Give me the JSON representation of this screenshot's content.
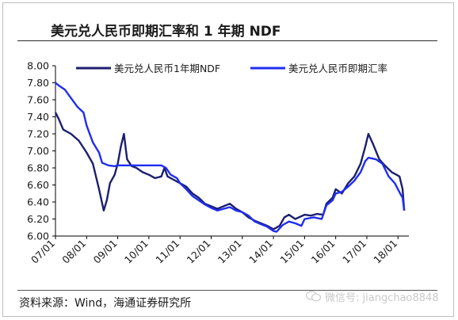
{
  "title": "美元兑人民币即期汇率和 1 年期 NDF",
  "source": "资料来源：Wind，海通证券研究所",
  "watermark": {
    "text": "微信号: jiangchao8848",
    "icon": "wechat-icon"
  },
  "colors": {
    "ndf": "#1b1f6e",
    "spot": "#1f2ef0",
    "axis": "#000000",
    "text": "#1a1a1a"
  },
  "chart_data": {
    "type": "line",
    "ylim": [
      6.0,
      8.0
    ],
    "yticks": [
      "8.00",
      "7.80",
      "7.60",
      "7.40",
      "7.20",
      "7.00",
      "6.80",
      "6.60",
      "6.40",
      "6.20",
      "6.00"
    ],
    "xticks": [
      "07/01",
      "08/01",
      "09/01",
      "10/01",
      "11/01",
      "12/01",
      "13/01",
      "14/01",
      "15/01",
      "16/01",
      "17/01",
      "18/01"
    ],
    "legend_position": "top",
    "series": [
      {
        "name": "美元兑人民币1年期NDF",
        "color": "#1b1f6e",
        "x": [
          2007.0,
          2007.1,
          2007.25,
          2007.5,
          2007.75,
          2008.0,
          2008.2,
          2008.4,
          2008.55,
          2008.65,
          2008.75,
          2008.9,
          2009.0,
          2009.1,
          2009.2,
          2009.3,
          2009.45,
          2009.6,
          2009.8,
          2010.0,
          2010.2,
          2010.4,
          2010.5,
          2010.6,
          2010.8,
          2011.0,
          2011.2,
          2011.4,
          2011.6,
          2011.8,
          2012.0,
          2012.2,
          2012.4,
          2012.6,
          2012.8,
          2013.0,
          2013.2,
          2013.4,
          2013.6,
          2013.8,
          2014.0,
          2014.2,
          2014.35,
          2014.5,
          2014.7,
          2015.0,
          2015.2,
          2015.4,
          2015.6,
          2015.7,
          2015.9,
          2016.0,
          2016.2,
          2016.4,
          2016.6,
          2016.8,
          2016.95,
          2017.05,
          2017.2,
          2017.4,
          2017.6,
          2017.8,
          2017.95,
          2018.05,
          2018.15,
          2018.2
        ],
        "y": [
          7.45,
          7.38,
          7.25,
          7.2,
          7.12,
          6.98,
          6.85,
          6.55,
          6.3,
          6.42,
          6.62,
          6.72,
          6.85,
          7.05,
          7.2,
          6.9,
          6.82,
          6.8,
          6.75,
          6.72,
          6.68,
          6.7,
          6.8,
          6.7,
          6.66,
          6.62,
          6.58,
          6.5,
          6.45,
          6.38,
          6.35,
          6.32,
          6.35,
          6.38,
          6.32,
          6.28,
          6.22,
          6.18,
          6.15,
          6.12,
          6.08,
          6.12,
          6.22,
          6.25,
          6.2,
          6.25,
          6.24,
          6.26,
          6.25,
          6.38,
          6.45,
          6.55,
          6.5,
          6.62,
          6.7,
          6.85,
          7.05,
          7.2,
          7.08,
          6.9,
          6.82,
          6.75,
          6.72,
          6.7,
          6.55,
          6.3
        ]
      },
      {
        "name": "美元兑人民币即期汇率",
        "color": "#1f2ef0",
        "x": [
          2007.0,
          2007.1,
          2007.3,
          2007.5,
          2007.7,
          2007.9,
          2008.0,
          2008.2,
          2008.4,
          2008.5,
          2008.7,
          2008.9,
          2009.0,
          2009.3,
          2009.6,
          2010.0,
          2010.4,
          2010.55,
          2010.7,
          2010.9,
          2011.0,
          2011.2,
          2011.4,
          2011.6,
          2011.8,
          2012.0,
          2012.2,
          2012.4,
          2012.6,
          2012.8,
          2013.0,
          2013.2,
          2013.4,
          2013.6,
          2013.8,
          2014.0,
          2014.1,
          2014.3,
          2014.5,
          2014.7,
          2014.9,
          2015.0,
          2015.3,
          2015.55,
          2015.7,
          2015.9,
          2016.0,
          2016.2,
          2016.4,
          2016.6,
          2016.8,
          2016.95,
          2017.05,
          2017.3,
          2017.5,
          2017.7,
          2017.9,
          2018.0,
          2018.1,
          2018.15,
          2018.2
        ],
        "y": [
          7.8,
          7.77,
          7.72,
          7.62,
          7.52,
          7.45,
          7.3,
          7.1,
          6.98,
          6.86,
          6.83,
          6.82,
          6.83,
          6.83,
          6.83,
          6.83,
          6.83,
          6.8,
          6.72,
          6.68,
          6.62,
          6.55,
          6.47,
          6.42,
          6.37,
          6.33,
          6.3,
          6.32,
          6.34,
          6.3,
          6.28,
          6.24,
          6.17,
          6.14,
          6.11,
          6.06,
          6.05,
          6.13,
          6.17,
          6.15,
          6.12,
          6.2,
          6.22,
          6.2,
          6.36,
          6.42,
          6.5,
          6.52,
          6.58,
          6.65,
          6.75,
          6.88,
          6.92,
          6.9,
          6.85,
          6.7,
          6.62,
          6.55,
          6.48,
          6.45,
          6.3
        ]
      }
    ]
  }
}
